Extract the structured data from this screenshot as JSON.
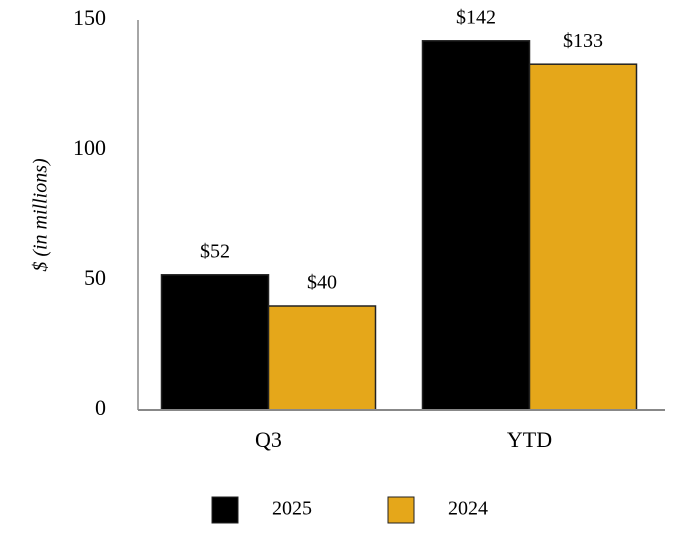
{
  "chart_data": {
    "type": "bar",
    "y_label": "$ (in millions)",
    "categories": [
      "Q3",
      "YTD"
    ],
    "series": [
      {
        "name": "2025",
        "color": "#000000",
        "values": [
          52,
          142
        ],
        "value_labels": [
          "$52",
          "$142"
        ]
      },
      {
        "name": "2024",
        "color": "#e5a71a",
        "values": [
          40,
          133
        ],
        "value_labels": [
          "$40",
          "$133"
        ]
      }
    ],
    "ylim": [
      0,
      150
    ],
    "yticks": [
      0,
      50,
      100,
      150
    ],
    "grid": false
  }
}
